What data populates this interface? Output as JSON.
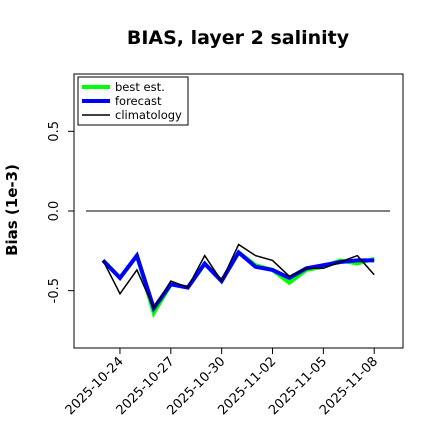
{
  "chart_data": {
    "type": "line",
    "title": "BIAS, layer 2 salinity",
    "xlabel": "",
    "ylabel": "Bias (1e-3)",
    "x": [
      "2025-10-23",
      "2025-10-24",
      "2025-10-25",
      "2025-10-26",
      "2025-10-27",
      "2025-10-28",
      "2025-10-29",
      "2025-10-30",
      "2025-10-31",
      "2025-11-01",
      "2025-11-02",
      "2025-11-03",
      "2025-11-04",
      "2025-11-05",
      "2025-11-06",
      "2025-11-07",
      "2025-11-08"
    ],
    "xticks": [
      "2025-10-24",
      "2025-10-27",
      "2025-10-30",
      "2025-11-02",
      "2025-11-05",
      "2025-11-08"
    ],
    "highlight_tick": "2025-10-30",
    "highlight_color": "#228B22",
    "ylim": [
      -0.86,
      0.86
    ],
    "yticks": [
      "0.5",
      "0.0",
      "-0.5"
    ],
    "yticks_values": [
      0.5,
      0.0,
      -0.5
    ],
    "reference_line": 0.0,
    "grid": false,
    "legend_position": "top-left",
    "series": [
      {
        "name": "best est.",
        "color": "#00ff00",
        "width": 4,
        "values": [
          -0.31,
          -0.42,
          -0.28,
          -0.64,
          -0.46,
          -0.48,
          -0.33,
          -0.44,
          -0.26,
          -0.34,
          -0.37,
          -0.45,
          -0.37,
          -0.35,
          -0.31,
          -0.33,
          -0.3
        ]
      },
      {
        "name": "forecast",
        "color": "#0000ff",
        "width": 4,
        "values": [
          -0.31,
          -0.42,
          -0.28,
          -0.61,
          -0.46,
          -0.48,
          -0.33,
          -0.44,
          -0.26,
          -0.35,
          -0.37,
          -0.42,
          -0.36,
          -0.34,
          -0.32,
          -0.31,
          -0.31
        ]
      },
      {
        "name": "climatology",
        "color": "#000000",
        "width": 1.5,
        "values": [
          -0.31,
          -0.52,
          -0.37,
          -0.61,
          -0.44,
          -0.48,
          -0.28,
          -0.44,
          -0.21,
          -0.28,
          -0.31,
          -0.41,
          -0.36,
          -0.36,
          -0.32,
          -0.28,
          -0.4
        ]
      }
    ]
  }
}
